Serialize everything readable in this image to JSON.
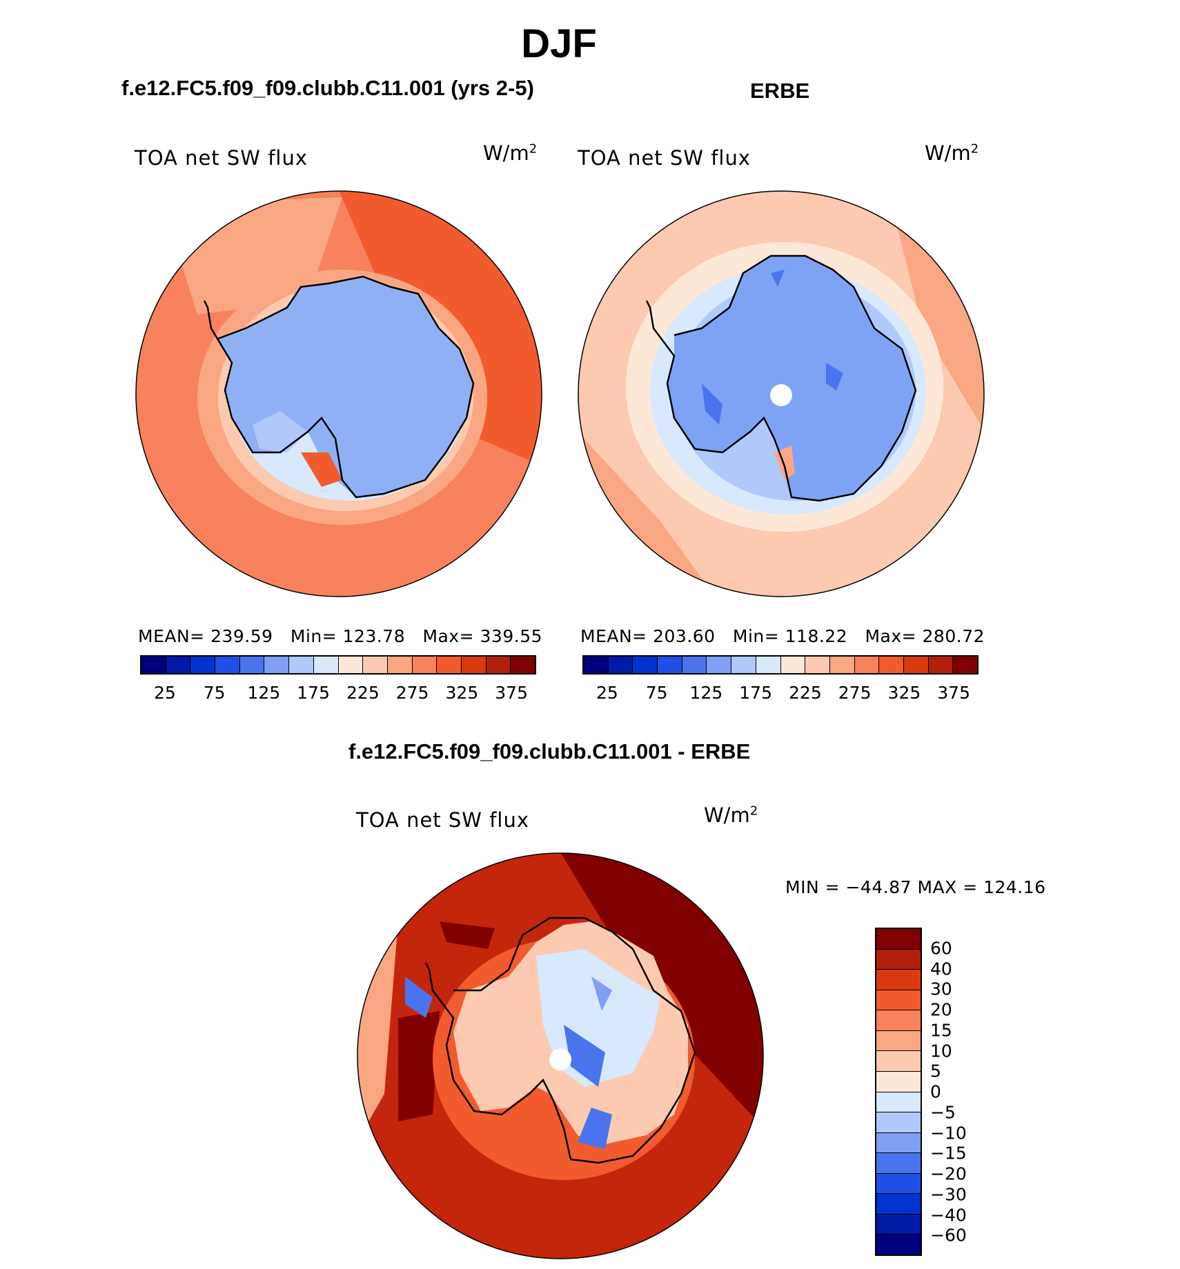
{
  "page_title": "DJF",
  "panels": [
    {
      "run_title": "f.e12.FC5.f09_f09.clubb.C11.001 (yrs 2-5)",
      "variable": "TOA net SW flux",
      "units": "W/m",
      "units_sup": "2",
      "stats": "MEAN= 239.59   Min= 123.78   Max= 339.55",
      "colorbar_ticks": [
        "25",
        "75",
        "125",
        "175",
        "225",
        "275",
        "325",
        "375"
      ]
    },
    {
      "run_title": "ERBE",
      "variable": "TOA net SW flux",
      "units": "W/m",
      "units_sup": "2",
      "stats": "MEAN= 203.60   Min= 118.22   Max= 280.72",
      "colorbar_ticks": [
        "25",
        "75",
        "125",
        "175",
        "225",
        "275",
        "325",
        "375"
      ]
    }
  ],
  "diff_panel": {
    "run_title": "f.e12.FC5.f09_f09.clubb.C11.001 - ERBE",
    "variable": "TOA net SW flux",
    "units": "W/m",
    "units_sup": "2",
    "stats": "MIN = −44.87 MAX = 124.16",
    "colorbar_ticks": [
      "60",
      "40",
      "30",
      "20",
      "15",
      "10",
      "5",
      "0",
      "−5",
      "−10",
      "−15",
      "−20",
      "−30",
      "−40",
      "−60"
    ]
  },
  "colors": {
    "seq_palette": [
      "#00007f",
      "#001aa6",
      "#0033cc",
      "#1f4fe6",
      "#4a74ee",
      "#7fa0f5",
      "#b0c8fa",
      "#d8e8fd",
      "#fde8d8",
      "#fccab0",
      "#f9a783",
      "#f7825d",
      "#f25b2d",
      "#d93a10",
      "#b02008",
      "#800000"
    ],
    "diff_palette": [
      "#800000",
      "#b02008",
      "#d93a10",
      "#f25b2d",
      "#f7825d",
      "#f9a783",
      "#fccab0",
      "#fde8d8",
      "#d8e8fd",
      "#b0c8fa",
      "#7fa0f5",
      "#4a74ee",
      "#1f4fe6",
      "#0033cc",
      "#001aa6",
      "#00007f"
    ],
    "ice_model": "#8fb0f5",
    "ice_obs": "#7fa3f4",
    "ocean_model": "#f36d3f",
    "ocean_obs": "#fbc1a0",
    "diff_ocean": "#c3260b"
  }
}
